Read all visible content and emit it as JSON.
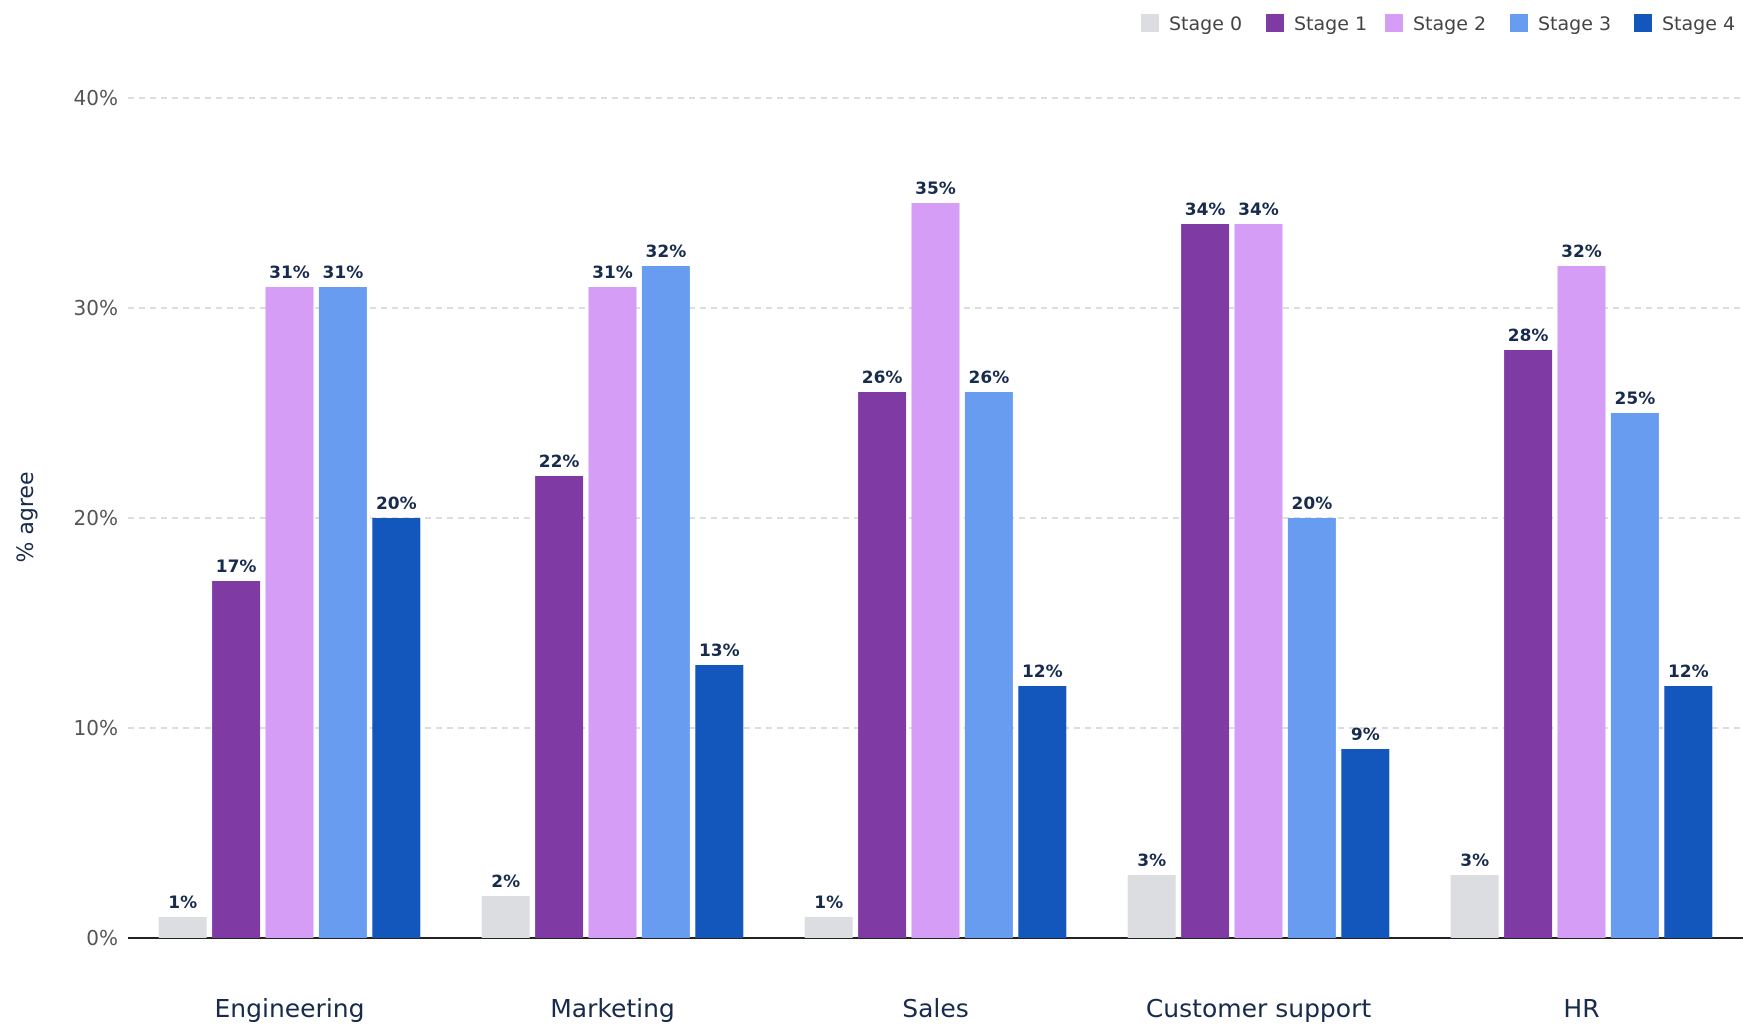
{
  "chart_data": {
    "type": "bar",
    "title": "",
    "xlabel": "",
    "ylabel": "% agree",
    "ylim": [
      0,
      40
    ],
    "yticks": [
      0,
      10,
      20,
      30,
      40
    ],
    "y_tick_format": "percent",
    "grid": true,
    "legend_position": "top-right",
    "categories": [
      "Engineering",
      "Marketing",
      "Sales",
      "Customer support",
      "HR"
    ],
    "series": [
      {
        "name": "Stage 0",
        "color": "#dcdde0",
        "values": [
          1,
          2,
          1,
          3,
          3
        ]
      },
      {
        "name": "Stage 1",
        "color": "#7f3ba3",
        "values": [
          17,
          22,
          26,
          34,
          28
        ]
      },
      {
        "name": "Stage 2",
        "color": "#d59df5",
        "values": [
          31,
          31,
          35,
          34,
          32
        ]
      },
      {
        "name": "Stage 3",
        "color": "#679cf0",
        "values": [
          31,
          32,
          26,
          20,
          25
        ]
      },
      {
        "name": "Stage 4",
        "color": "#1357bd",
        "values": [
          20,
          13,
          12,
          9,
          12
        ]
      }
    ]
  }
}
